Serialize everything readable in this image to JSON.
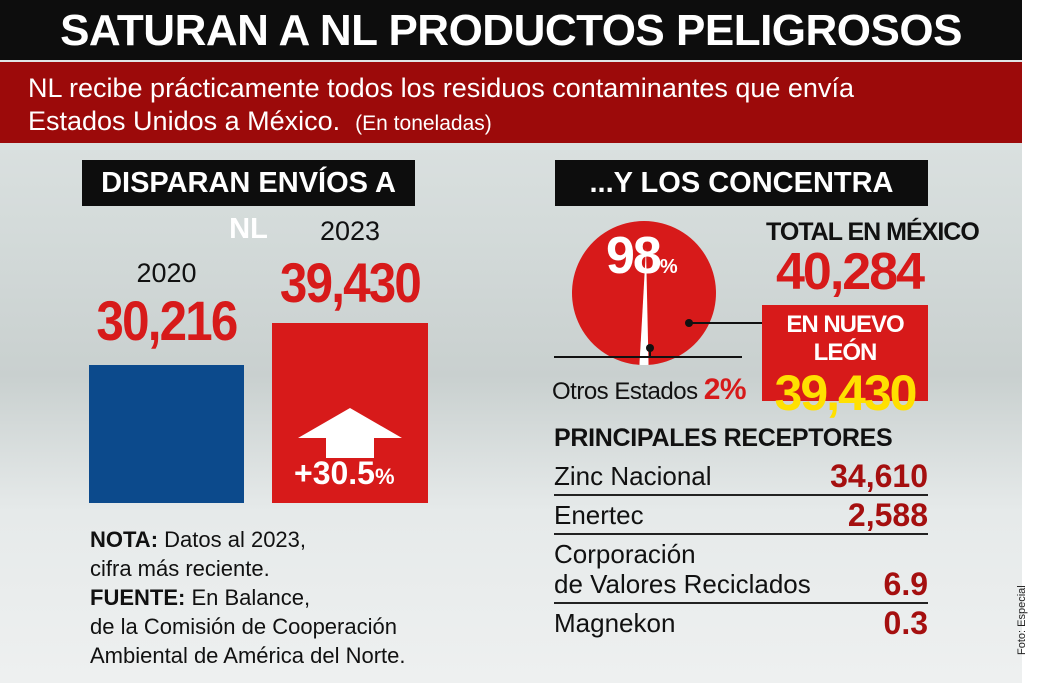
{
  "header": {
    "title": "SATURAN A NL PRODUCTOS PELIGROSOS",
    "subtitle_line1": "NL recibe prácticamente todos los residuos contaminantes que envía",
    "subtitle_line2": "Estados Unidos a México.",
    "unit": "(En toneladas)"
  },
  "chart_data": [
    {
      "type": "bar",
      "title": "DISPARAN ENVÍOS A NL",
      "categories": [
        "2020",
        "2023"
      ],
      "values": [
        30216,
        39430
      ],
      "value_labels": [
        "30,216",
        "39,430"
      ],
      "colors": [
        "#0c4a8c",
        "#d71a1a"
      ],
      "annotation": "+30.5",
      "annotation_unit": "%"
    },
    {
      "type": "pie",
      "title": "...Y LOS CONCENTRA",
      "slices": [
        {
          "label": "EN NUEVO LEÓN",
          "value": 98,
          "color": "#d71a1a"
        },
        {
          "label": "Otros Estados",
          "value": 2,
          "color": "#ffffff"
        }
      ],
      "main_label": "98",
      "main_unit": "%",
      "other_label": "Otros Estados",
      "other_value": "2%",
      "total_label": "TOTAL EN MÉXICO",
      "total_value": "40,284",
      "nl_label": "EN NUEVO LEÓN",
      "nl_value": "39,430"
    },
    {
      "type": "table",
      "title": "PRINCIPALES RECEPTORES",
      "rows": [
        {
          "name": "Zinc Nacional",
          "value": "34,610"
        },
        {
          "name": "Enertec",
          "value": "2,588"
        },
        {
          "name": "Corporación",
          "name2": "de Valores Reciclados",
          "value": "6.9"
        },
        {
          "name": "Magnekon",
          "value": "0.3"
        }
      ]
    }
  ],
  "note": {
    "nota_label": "NOTA:",
    "nota_text": " Datos al 2023,",
    "nota_line2": "cifra más reciente.",
    "fuente_label": "FUENTE:",
    "fuente_text": " En Balance,",
    "fuente_line2": "de la Comisión de Cooperación",
    "fuente_line3": "Ambiental de América del Norte."
  },
  "credit": "Foto: Especial",
  "colors": {
    "accent_red": "#d71a1a",
    "dark_red": "#9c0a0a",
    "blue": "#0c4a8c",
    "yellow": "#ffe000"
  }
}
